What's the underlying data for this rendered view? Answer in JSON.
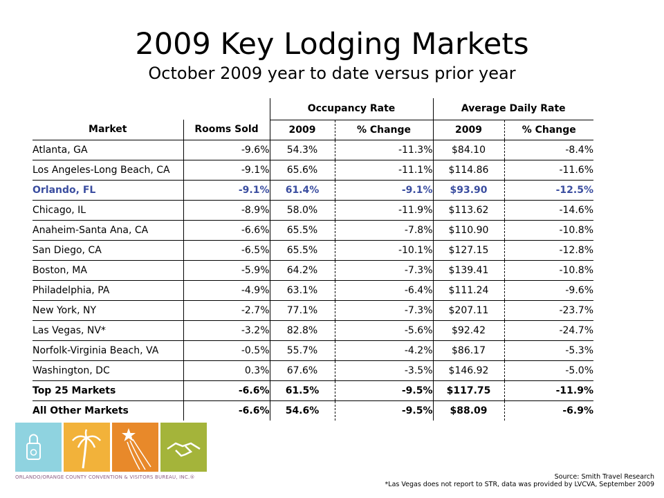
{
  "title": "2009 Key Lodging Markets",
  "subtitle": "October 2009 year to date versus prior year",
  "table": {
    "group_headers": {
      "occupancy": "Occupancy Rate",
      "adr": "Average Daily Rate"
    },
    "columns": [
      "Market",
      "Rooms Sold",
      "2009",
      "% Change",
      "2009",
      "% Change"
    ],
    "rows": [
      [
        "Atlanta, GA",
        "-9.6%",
        "54.3%",
        "-11.3%",
        "$84.10",
        "-8.4%"
      ],
      [
        "Los Angeles-Long Beach, CA",
        "-9.1%",
        "65.6%",
        "-11.1%",
        "$114.86",
        "-11.6%"
      ],
      [
        "Orlando, FL",
        "-9.1%",
        "61.4%",
        "-9.1%",
        "$93.90",
        "-12.5%"
      ],
      [
        "Chicago, IL",
        "-8.9%",
        "58.0%",
        "-11.9%",
        "$113.62",
        "-14.6%"
      ],
      [
        "Anaheim-Santa Ana, CA",
        "-6.6%",
        "65.5%",
        "-7.8%",
        "$110.90",
        "-10.8%"
      ],
      [
        "San Diego, CA",
        "-6.5%",
        "65.5%",
        "-10.1%",
        "$127.15",
        "-12.8%"
      ],
      [
        "Boston, MA",
        "-5.9%",
        "64.2%",
        "-7.3%",
        "$139.41",
        "-10.8%"
      ],
      [
        "Philadelphia, PA",
        "-4.9%",
        "63.1%",
        "-6.4%",
        "$111.24",
        "-9.6%"
      ],
      [
        "New York, NY",
        "-2.7%",
        "77.1%",
        "-7.3%",
        "$207.11",
        "-23.7%"
      ],
      [
        "Las Vegas, NV*",
        "-3.2%",
        "82.8%",
        "-5.6%",
        "$92.42",
        "-24.7%"
      ],
      [
        "Norfolk-Virginia Beach, VA",
        "-0.5%",
        "55.7%",
        "-4.2%",
        "$86.17",
        "-5.3%"
      ],
      [
        "Washington, DC",
        "0.3%",
        "67.6%",
        "-3.5%",
        "$146.92",
        "-5.0%"
      ],
      [
        "Top 25 Markets",
        "-6.6%",
        "61.5%",
        "-9.5%",
        "$117.75",
        "-11.9%"
      ],
      [
        "All Other Markets",
        "-6.6%",
        "54.6%",
        "-9.5%",
        "$88.09",
        "-6.9%"
      ]
    ],
    "highlight_row": "Orlando, FL",
    "highlight_color": "#3b4ea0"
  },
  "logo": {
    "text": "ORLANDO/ORANGE COUNTY CONVENTION & VISITORS BUREAU, INC.®",
    "tiles": [
      {
        "icon": "shopping-bag-icon",
        "color": "#8fd3e0"
      },
      {
        "icon": "palm-tree-icon",
        "color": "#f2b23a"
      },
      {
        "icon": "shooting-star-icon",
        "color": "#e8892a"
      },
      {
        "icon": "handshake-icon",
        "color": "#a4b43a"
      }
    ]
  },
  "source": {
    "line1": "Source: Smith Travel Research",
    "line2": "*Las Vegas does not report to STR, data was provided by LVCVA, September 2009"
  }
}
